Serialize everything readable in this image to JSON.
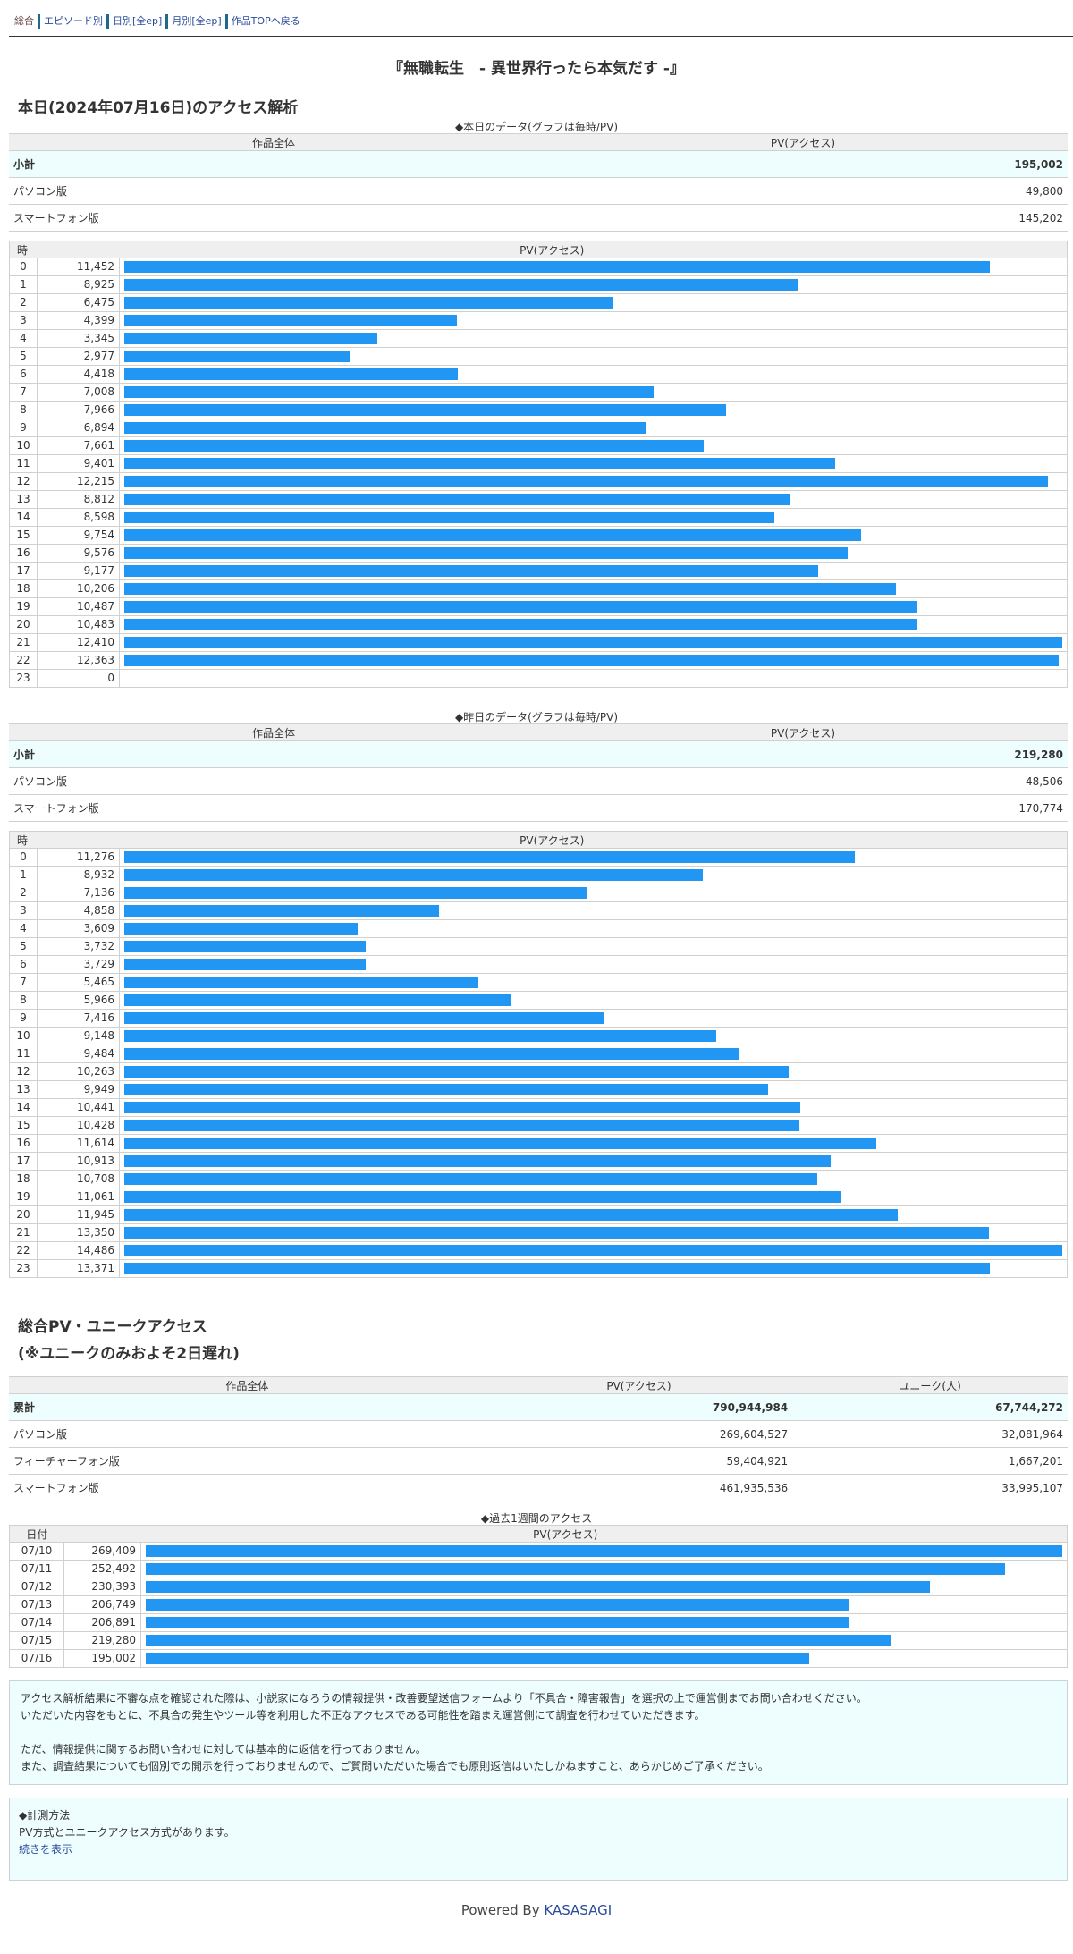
{
  "nav": {
    "items": [
      {
        "label": "総合",
        "current": true
      },
      {
        "label": "エピソード別",
        "current": false
      },
      {
        "label": "日別[全ep]",
        "current": false
      },
      {
        "label": "月別[全ep]",
        "current": false
      },
      {
        "label": "作品TOPへ戻る",
        "current": false
      }
    ]
  },
  "work_title": "『無職転生　- 異世界行ったら本気だす -』",
  "today": {
    "heading": "本日(2024年07月16日)のアクセス解析",
    "caption": "◆本日のデータ(グラフは毎時/PV)",
    "summary": {
      "col_label": "作品全体",
      "col_pv": "PV(アクセス)",
      "rows": [
        {
          "label": "小計",
          "value": "195,002"
        },
        {
          "label": "パソコン版",
          "value": "49,800"
        },
        {
          "label": "スマートフォン版",
          "value": "145,202"
        }
      ]
    },
    "hourly_header": {
      "key": "時",
      "pv": "PV(アクセス)"
    }
  },
  "yesterday": {
    "caption": "◆昨日のデータ(グラフは毎時/PV)",
    "summary": {
      "col_label": "作品全体",
      "col_pv": "PV(アクセス)",
      "rows": [
        {
          "label": "小計",
          "value": "219,280"
        },
        {
          "label": "パソコン版",
          "value": "48,506"
        },
        {
          "label": "スマートフォン版",
          "value": "170,774"
        }
      ]
    },
    "hourly_header": {
      "key": "時",
      "pv": "PV(アクセス)"
    }
  },
  "totals": {
    "heading_line1": "総合PV・ユニークアクセス",
    "heading_line2": "(※ユニークのみおよそ2日遅れ)",
    "col_label": "作品全体",
    "col_pv": "PV(アクセス)",
    "col_unique": "ユニーク(人)",
    "rows": [
      {
        "label": "累計",
        "pv": "790,944,984",
        "unique": "67,744,272"
      },
      {
        "label": "パソコン版",
        "pv": "269,604,527",
        "unique": "32,081,964"
      },
      {
        "label": "フィーチャーフォン版",
        "pv": "59,404,921",
        "unique": "1,667,201"
      },
      {
        "label": "スマートフォン版",
        "pv": "461,935,536",
        "unique": "33,995,107"
      }
    ]
  },
  "weekly": {
    "caption": "◆過去1週間のアクセス",
    "header": {
      "key": "日付",
      "pv": "PV(アクセス)"
    }
  },
  "notice": {
    "lines": [
      "アクセス解析結果に不審な点を確認された際は、小説家になろうの情報提供・改善要望送信フォームより「不具合・障害報告」を選択の上で運営側までお問い合わせください。",
      "いただいた内容をもとに、不具合の発生やツール等を利用した不正なアクセスである可能性を踏まえ運営側にて調査を行わせていただきます。",
      "",
      "ただ、情報提供に関するお問い合わせに対しては基本的に返信を行っておりません。",
      "また、調査結果についても個別での開示を行っておりませんので、ご質問いただいた場合でも原則返信はいたしかねますこと、あらかじめご了承ください。"
    ]
  },
  "measure": {
    "title": "◆計測方法",
    "text": "PV方式とユニークアクセス方式があります。",
    "more_link": "続きを表示"
  },
  "footer": {
    "prefix": "Powered By",
    "brand": "KASASAGI"
  },
  "colors": {
    "bar": "#2196f3",
    "subtotal_bg": "#eefefe",
    "header_bg": "#efefef",
    "link": "#2a4b9b"
  },
  "chart_data": [
    {
      "type": "bar",
      "orientation": "horizontal",
      "title": "◆本日のデータ(グラフは毎時/PV)",
      "xlabel": "PV(アクセス)",
      "ylabel": "時",
      "categories": [
        "0",
        "1",
        "2",
        "3",
        "4",
        "5",
        "6",
        "7",
        "8",
        "9",
        "10",
        "11",
        "12",
        "13",
        "14",
        "15",
        "16",
        "17",
        "18",
        "19",
        "20",
        "21",
        "22",
        "23"
      ],
      "values": [
        11452,
        8925,
        6475,
        4399,
        3345,
        2977,
        4418,
        7008,
        7966,
        6894,
        7661,
        9401,
        12215,
        8812,
        8598,
        9754,
        9576,
        9177,
        10206,
        10487,
        10483,
        12410,
        12363,
        0
      ],
      "labels": [
        "11,452",
        "8,925",
        "6,475",
        "4,399",
        "3,345",
        "2,977",
        "4,418",
        "7,008",
        "7,966",
        "6,894",
        "7,661",
        "9,401",
        "12,215",
        "8,812",
        "8,598",
        "9,754",
        "9,576",
        "9,177",
        "10,206",
        "10,487",
        "10,483",
        "12,410",
        "12,363",
        "0"
      ],
      "xlim": [
        0,
        12410
      ]
    },
    {
      "type": "bar",
      "orientation": "horizontal",
      "title": "◆昨日のデータ(グラフは毎時/PV)",
      "xlabel": "PV(アクセス)",
      "ylabel": "時",
      "categories": [
        "0",
        "1",
        "2",
        "3",
        "4",
        "5",
        "6",
        "7",
        "8",
        "9",
        "10",
        "11",
        "12",
        "13",
        "14",
        "15",
        "16",
        "17",
        "18",
        "19",
        "20",
        "21",
        "22",
        "23"
      ],
      "values": [
        11276,
        8932,
        7136,
        4858,
        3609,
        3732,
        3729,
        5465,
        5966,
        7416,
        9148,
        9484,
        10263,
        9949,
        10441,
        10428,
        11614,
        10913,
        10708,
        11061,
        11945,
        13350,
        14486,
        13371
      ],
      "labels": [
        "11,276",
        "8,932",
        "7,136",
        "4,858",
        "3,609",
        "3,732",
        "3,729",
        "5,465",
        "5,966",
        "7,416",
        "9,148",
        "9,484",
        "10,263",
        "9,949",
        "10,441",
        "10,428",
        "11,614",
        "10,913",
        "10,708",
        "11,061",
        "11,945",
        "13,350",
        "14,486",
        "13,371"
      ],
      "xlim": [
        0,
        14486
      ]
    },
    {
      "type": "bar",
      "orientation": "horizontal",
      "title": "◆過去1週間のアクセス",
      "xlabel": "PV(アクセス)",
      "ylabel": "日付",
      "categories": [
        "07/10",
        "07/11",
        "07/12",
        "07/13",
        "07/14",
        "07/15",
        "07/16"
      ],
      "values": [
        269409,
        252492,
        230393,
        206749,
        206891,
        219280,
        195002
      ],
      "labels": [
        "269,409",
        "252,492",
        "230,393",
        "206,749",
        "206,891",
        "219,280",
        "195,002"
      ],
      "xlim": [
        0,
        269409
      ]
    }
  ]
}
